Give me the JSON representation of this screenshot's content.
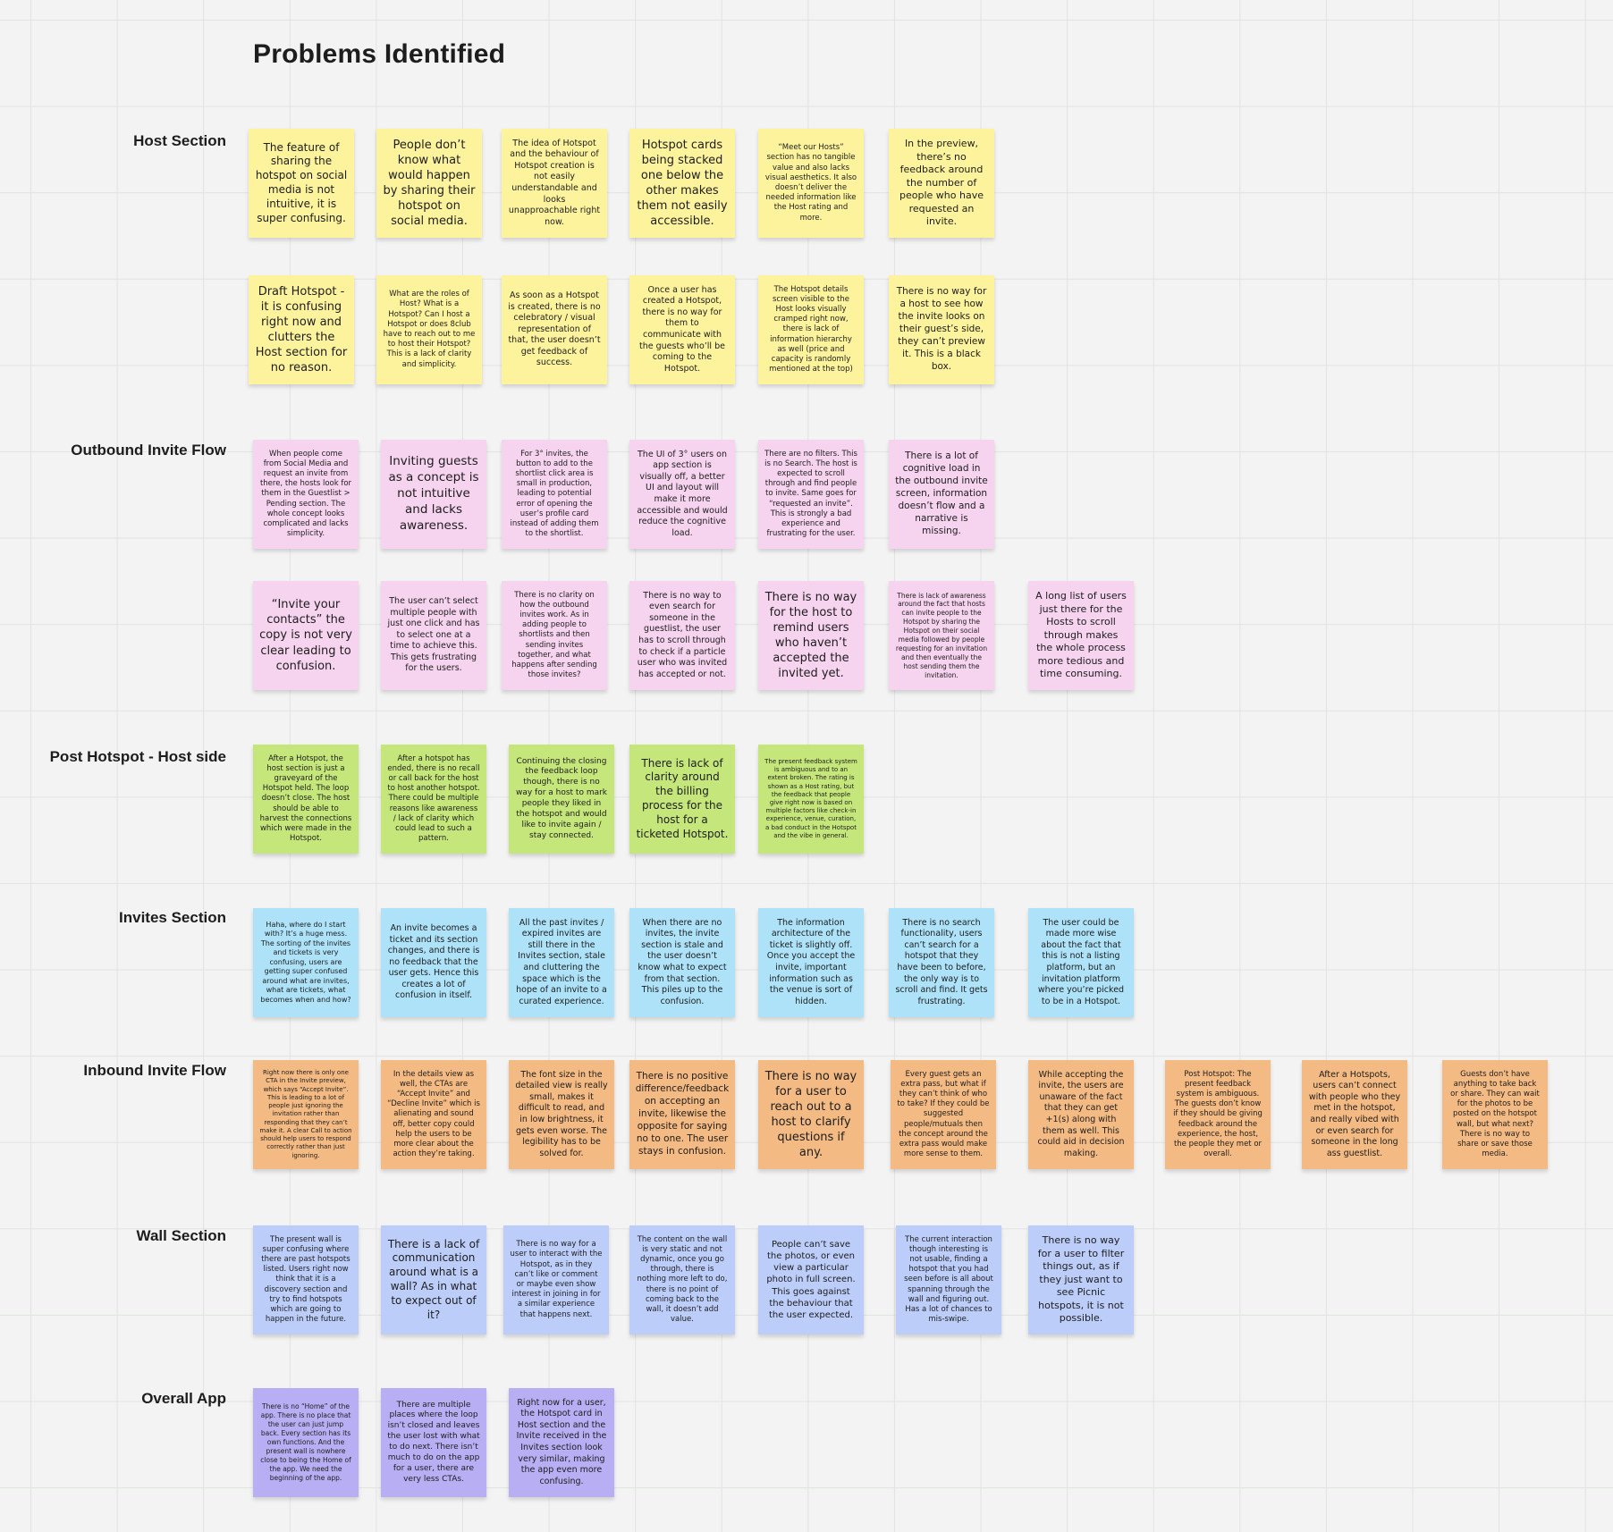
{
  "title": "Problems Identified",
  "sections": [
    {
      "label": "Host Section",
      "color": "#fdf39c",
      "rows": [
        [
          "The feature of sharing the hotspot on social media is not intuitive, it is super confusing.",
          "People don’t know what would happen by sharing their hotspot on social media.",
          "The idea of Hotspot and the behaviour of Hotspot creation is not easily understandable and looks unapproachable right now.",
          "Hotspot cards being stacked one below the other makes them not easily accessible.",
          "“Meet our Hosts” section has no tangible value and also lacks visual aesthetics. It also doesn’t deliver the needed information like the Host rating and more.",
          "In the preview, there’s no feedback around the number of people who have requested an invite."
        ],
        [
          "Draft Hotspot - it is confusing right now and clutters the Host section for no reason.",
          "What are the roles of Host? What is a Hotspot? Can I host a Hotspot or does 8club have to reach out to me to host their Hotspot? This is a lack of clarity and simplicity.",
          "As soon as a Hotspot is created, there is no celebratory / visual representation of that, the user doesn’t get feedback of success.",
          "Once a user has created a Hotspot, there is no way for them to communicate with the guests who’ll be coming to the Hotspot.",
          "The Hotspot details screen visible to the Host looks visually cramped right now, there is lack of information hierarchy as well (price and capacity is randomly mentioned at the top)",
          "There is no way for a host to see how the invite looks on their guest’s side, they can’t preview it. This is a black box."
        ]
      ]
    },
    {
      "label": "Outbound Invite Flow",
      "color": "#f6d3ee",
      "rows": [
        [
          "When people come from Social Media and request an invite from there, the hosts look for them in the Guestlist > Pending section. The whole concept looks complicated and lacks simplicity.",
          "Inviting guests as a concept is not intuitive and lacks awareness.",
          "For 3° invites, the button to add to the shortlist click area is small in production, leading to potential error of opening the user’s profile card instead of adding them to the shortlist.",
          "The UI of 3° users on app section is visually off, a better UI and layout will make it more accessible and would reduce the cognitive load.",
          "There are no filters. This is no Search. The host is expected to scroll through and find people to invite. Same goes for “requested an invite”. This is strongly a bad experience and frustrating for the user.",
          "There is a lot of cognitive load in the outbound invite screen, information doesn’t flow and a narrative is missing."
        ],
        [
          "“Invite your contacts” the copy is not very clear leading to confusion.",
          "The user can’t select multiple people with just one click and has to select one at a time to achieve this. This gets frustrating for the users.",
          "There is no clarity on how the outbound invites work. As in adding people to shortlists and then sending invites together, and what happens after sending those invites?",
          "There is no way to even search for someone in the guestlist, the user has to scroll through to check if a particle user who was invited has accepted or not.",
          "There is no way for the host to remind users who haven’t accepted the invited yet.",
          "There is lack of awareness around the fact that hosts can invite people to the Hotspot by sharing the Hotspot on their social media followed by people requesting for an invitation and then eventually the host sending them the invitation.",
          "A long list of users just there for the Hosts to scroll through makes the whole process more tedious and time consuming."
        ]
      ]
    },
    {
      "label": "Post Hotspot - Host side",
      "color": "#c5e67a",
      "rows": [
        [
          "After a Hotspot, the host section is just a graveyard of the Hotspot held. The loop doesn’t close. The host should be able to harvest the connections which were made in the Hotspot.",
          "After a hotspot has ended, there is no recall or call back for the host to host another hotspot. There could be multiple reasons like awareness / lack of clarity which could lead to such a pattern.",
          "Continuing the closing the feedback loop though, there is no way for a host to mark people they liked in the hotspot and would like to invite again / stay connected.",
          "There is lack of clarity around the billing process for the host for a ticketed Hotspot.",
          "The present feedback system is ambiguous and to an extent broken. The rating is shown as a Host rating, but the feedback that people give right now is based on multiple factors like check-in experience, venue, curation, a bad conduct in the Hotspot and the vibe in general."
        ]
      ]
    },
    {
      "label": "Invites Section",
      "color": "#ade2f8",
      "rows": [
        [
          "Haha, where do I start with? It’s a huge mess. The sorting of the invites and tickets is very confusing, users are getting super confused around what are invites, what are tickets, what becomes when and how?",
          "An invite becomes a ticket and its section changes, and there is no feedback that the user gets. Hence this creates a lot of confusion in itself.",
          "All the past invites / expired invites are still there in the Invites section, stale and cluttering the space which is the hope of an invite to a curated experience.",
          "When there are no invites, the invite section is stale and the user doesn’t know what to expect from that section. This piles up to the confusion.",
          "The information architecture of the ticket is slightly off. Once you accept the invite, important information such as the venue is sort of hidden.",
          "There is no search functionality, users can’t search for a hotspot that they have been to before, the only way is to scroll and find. It gets frustrating.",
          "The user could be made more wise about the fact that this is not a listing platform, but an invitation platform where you’re picked to be in a Hotspot."
        ]
      ]
    },
    {
      "label": "Inbound Invite Flow",
      "color": "#f4ba83",
      "rows": [
        [
          "Right now there is only one CTA in the Invite preview, which says “Accept Invite”. This is leading to a lot of people just ignoring the invitation rather than responding that they can’t make it. A clear Call to action should help users to respond correctly rather than just ignoring.",
          "In the details view as well, the CTAs are “Accept Invite” and “Decline Invite” which is alienating and sound off, better copy could help the users to be more clear about the action they’re taking.",
          "The font size in the detailed view is really small, makes it difficult to read, and in low brightness, it gets even worse. The legibility has to be solved for.",
          "There is no positive difference/feedback on accepting an invite, likewise the opposite for saying no to one. The user stays in confusion.",
          "There is no way for a user to reach out to a host to clarify questions if any.",
          "Every guest gets an extra pass, but what if they can’t think of who to take? If they could be suggested people/mutuals then the concept around the extra pass would make more sense to them.",
          "While accepting the invite, the users are unaware of the fact that they can get +1(s) along with them as well. This could aid in decision making.",
          "Post Hotspot: The present feedback system is ambiguous. The guests don’t know if they should be giving feedback around the experience, the host, the people they met or overall.",
          "After a Hotspots, users can’t connect with people who they met in the hotspot, and really vibed with or even search for someone in the long ass guestlist.",
          "Guests don’t have anything to take back or share. They can wait for the photos to be posted on the hotspot wall, but what next? There is no way to share or save those media."
        ]
      ]
    },
    {
      "label": "Wall Section",
      "color": "#bccdfa",
      "rows": [
        [
          "The present wall is super confusing where there are past hotspots listed. Users right now think that it is a discovery section and try to find hotspots which are going to happen in the future.",
          "There is a lack of communication around what is a wall? As in what to expect out of it?",
          "There is no way for a user to interact with the Hotspot, as in they can’t like or comment or maybe even show interest in joining in for a similar experience that happens next.",
          "The content on the wall is very static and not dynamic, once you go through, there is nothing more left to do, there is no point of coming back to the wall, it doesn’t add value.",
          "People can’t save the photos, or even view a particular photo in full screen. This goes against the behaviour that the user expected.",
          "The current interaction though interesting is not usable, finding a hotspot that you had seen before is all about spanning through the wall and figuring out. Has a lot of chances to mis-swipe.",
          "There is no way for a user to filter things out, as if they just want to see Picnic hotspots, it is not possible."
        ]
      ]
    },
    {
      "label": "Overall App",
      "color": "#b7aef3",
      "rows": [
        [
          "There is no “Home” of the app. There is no place that the user can just jump back. Every section has its own functions. And the present wall is nowhere close to being the Home of the app. We need the beginning of the app.",
          "There are multiple places where the loop isn’t closed and leaves the user lost with what to do next. There isn’t much to do on the app for a user, there are very less CTAs.",
          "Right now for a user, the Hotspot card in Host section and the Invite received in the Invites section look very similar, making the app even more confusing."
        ]
      ]
    }
  ]
}
